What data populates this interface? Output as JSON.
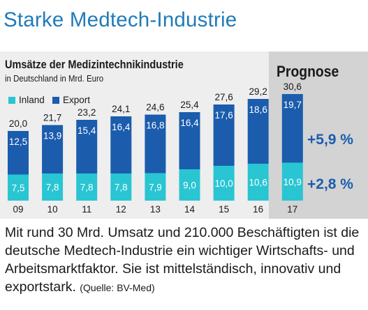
{
  "headline": "Starke Medtech-Industrie",
  "forecast_label": "Prognose",
  "colors": {
    "inland": "#29c5d3",
    "export": "#1b5cad",
    "growth": "#1b5cad",
    "headline": "#1f7bb8"
  },
  "caption": {
    "text": "Mit rund 30 Mrd. Umsatz und 210.000 Beschäftigten ist die deutsche Medtech-Industrie ein wichtiger Wirtschafts- und Arbeitsmarktfaktor. Sie ist mittel­ständisch, innovativ und exportstark.",
    "source": "(Quelle: BV-Med)"
  },
  "chart_data": {
    "type": "bar",
    "stacked": true,
    "title": "Umsätze der Medizintechnikindustrie",
    "subtitle": "in Deutschland in Mrd. Euro",
    "categories": [
      "09",
      "10",
      "11",
      "12",
      "13",
      "14",
      "15",
      "16",
      "17"
    ],
    "series": [
      {
        "name": "Inland",
        "values": [
          7.5,
          7.8,
          7.8,
          7.8,
          7.9,
          9.0,
          10.0,
          10.6,
          10.9
        ],
        "labels": [
          "7,5",
          "7,8",
          "7,8",
          "7,8",
          "7,9",
          "9,0",
          "10,0",
          "10,6",
          "10,9"
        ]
      },
      {
        "name": "Export",
        "values": [
          12.5,
          13.9,
          15.4,
          16.4,
          16.8,
          16.4,
          17.6,
          18.6,
          19.7
        ],
        "labels": [
          "12,5",
          "13,9",
          "15,4",
          "16,4",
          "16,8",
          "16,4",
          "17,6",
          "18,6",
          "19,7"
        ]
      }
    ],
    "totals": [
      20.0,
      21.7,
      23.2,
      24.1,
      24.6,
      25.4,
      27.6,
      29.2,
      30.6
    ],
    "total_labels": [
      "20,0",
      "21,7",
      "23,2",
      "24,1",
      "24,6",
      "25,4",
      "27,6",
      "29,2",
      "30,6"
    ],
    "forecast_category": "17",
    "growth": {
      "export": "+5,9 %",
      "inland": "+2,8 %"
    },
    "ylim": [
      0,
      32
    ],
    "legend": "top-left",
    "grid": false
  }
}
